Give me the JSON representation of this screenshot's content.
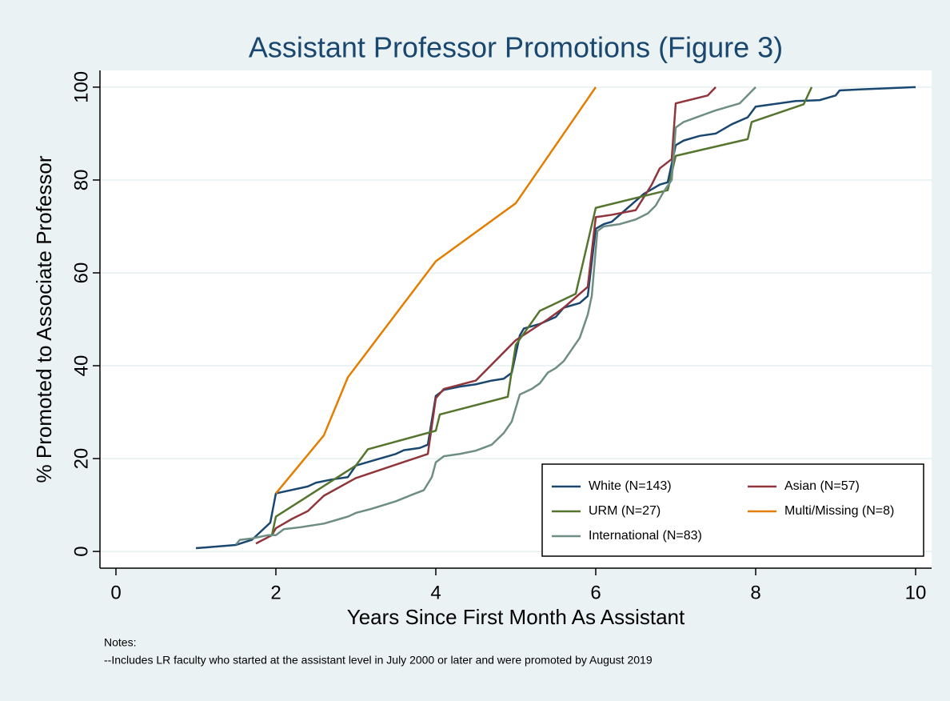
{
  "chart_data": {
    "type": "line",
    "title": "Assistant Professor Promotions (Figure 3)",
    "xlabel": "Years Since First Month As Assistant",
    "ylabel": "% Promoted to Associate Professor",
    "notes": [
      "Notes:",
      "--Includes LR faculty who started at the assistant level in July 2000 or later and were promoted by August 2019"
    ],
    "xlim": [
      -0.2,
      10.2
    ],
    "ylim": [
      -3.6,
      103.6
    ],
    "xticks": [
      0,
      2,
      4,
      6,
      8,
      10
    ],
    "yticks": [
      0,
      20,
      40,
      60,
      80,
      100
    ],
    "grid": true,
    "legend": "bottom-right",
    "series": [
      {
        "name": "White (N=143)",
        "color": "#1a476f",
        "x": [
          1,
          1.5,
          1.7,
          1.93,
          2,
          2.4,
          2.5,
          2.7,
          2.9,
          3,
          3.3,
          3.5,
          3.6,
          3.8,
          3.9,
          4,
          4.1,
          4.3,
          4.5,
          4.7,
          4.85,
          4.95,
          5.05,
          5.1,
          5.3,
          5.5,
          5.6,
          5.8,
          5.9,
          6,
          6.1,
          6.2,
          6.4,
          6.5,
          6.6,
          6.7,
          6.8,
          6.9,
          7,
          7.1,
          7.3,
          7.5,
          7.7,
          7.9,
          8,
          8.5,
          8.8,
          9,
          9.05,
          9.3,
          10
        ],
        "values": [
          0.7,
          1.4,
          2.5,
          6.2,
          12.5,
          14,
          14.8,
          15.5,
          16,
          18.5,
          20,
          21,
          21.8,
          22.3,
          23,
          33.5,
          34.8,
          35.5,
          36,
          36.8,
          37.2,
          38.5,
          46.5,
          48,
          49,
          50.5,
          52.5,
          53.5,
          55,
          69.5,
          70.5,
          71,
          74,
          75.5,
          77,
          78,
          79,
          79.5,
          87.5,
          88.5,
          89.5,
          90,
          92,
          93.5,
          95.8,
          97,
          97.2,
          98.2,
          99.3,
          99.5,
          100
        ]
      },
      {
        "name": "Asian (N=57)",
        "color": "#90353b",
        "x": [
          1.75,
          1.95,
          2,
          2.1,
          2.2,
          2.4,
          2.6,
          3,
          3.9,
          4,
          4.1,
          4.5,
          5,
          5.4,
          5.6,
          5.9,
          6,
          6.2,
          6.5,
          6.7,
          6.8,
          6.95,
          7,
          7.4,
          7.5
        ],
        "values": [
          1.7,
          3.5,
          5,
          6,
          7,
          8.7,
          12,
          15.8,
          21,
          33,
          35,
          36.8,
          45.5,
          50,
          52.5,
          57,
          72,
          72.5,
          73.5,
          79,
          82.5,
          84.5,
          96.5,
          98.2,
          100
        ]
      },
      {
        "name": "URM (N=27)",
        "color": "#55752f",
        "x": [
          1.95,
          2,
          2.5,
          3,
          3.15,
          4,
          4.05,
          4.9,
          5,
          5.3,
          5.75,
          6,
          6.9,
          7,
          7.9,
          7.95,
          8.6,
          8.7
        ],
        "values": [
          3.5,
          7.5,
          13,
          18.5,
          22,
          26,
          29.5,
          33.3,
          44.5,
          51.8,
          55.5,
          74,
          77.8,
          85.2,
          88.8,
          92.5,
          96.3,
          100
        ]
      },
      {
        "name": "Multi/Missing (N=8)",
        "color": "#e37e00",
        "x": [
          2,
          2.6,
          2.9,
          4,
          5,
          6
        ],
        "values": [
          12.5,
          25,
          37.5,
          62.5,
          75,
          100
        ]
      },
      {
        "name": "International (N=83)",
        "color": "#6e8e84",
        "x": [
          1.5,
          1.55,
          1.7,
          1.9,
          2,
          2.1,
          2.3,
          2.6,
          2.8,
          2.9,
          3,
          3.2,
          3.5,
          3.7,
          3.85,
          3.95,
          4,
          4.1,
          4.3,
          4.5,
          4.7,
          4.85,
          4.95,
          5.05,
          5.2,
          5.3,
          5.4,
          5.5,
          5.6,
          5.7,
          5.8,
          5.9,
          5.95,
          6.02,
          6.1,
          6.3,
          6.5,
          6.65,
          6.75,
          6.85,
          6.95,
          7,
          7.1,
          7.5,
          7.8,
          8
        ],
        "values": [
          1.5,
          2.5,
          2.8,
          3.5,
          3.5,
          4.8,
          5.2,
          6,
          7,
          7.5,
          8.3,
          9.2,
          10.8,
          12.2,
          13.2,
          16,
          19.2,
          20.5,
          21,
          21.7,
          23,
          25.5,
          28,
          33.8,
          35,
          36.2,
          38.5,
          39.5,
          41,
          43.5,
          46,
          51,
          55,
          69,
          70,
          70.5,
          71.5,
          72.8,
          74.5,
          77.5,
          80,
          91.3,
          92.5,
          95,
          96.5,
          100
        ]
      }
    ]
  }
}
